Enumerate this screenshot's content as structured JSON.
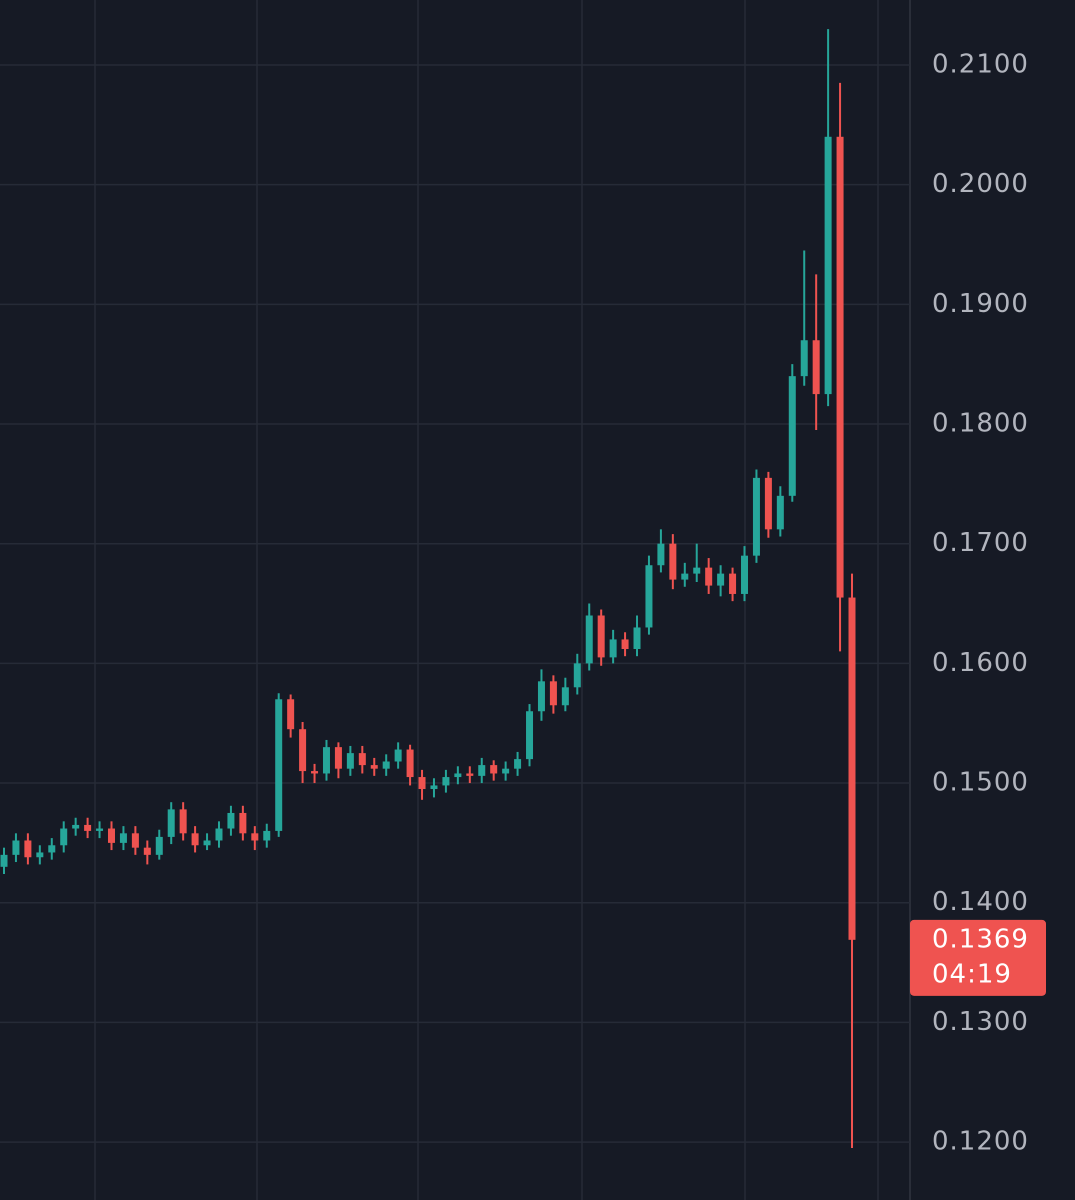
{
  "chart_data": {
    "type": "candlestick",
    "up_color": "#26a69a",
    "down_color": "#ef5350",
    "ylim": [
      0.11516,
      0.21543
    ],
    "yticks": [
      {
        "value": 0.21,
        "label": "0.2100"
      },
      {
        "value": 0.2,
        "label": "0.2000"
      },
      {
        "value": 0.19,
        "label": "0.1900"
      },
      {
        "value": 0.18,
        "label": "0.1800"
      },
      {
        "value": 0.17,
        "label": "0.1700"
      },
      {
        "value": 0.16,
        "label": "0.1600"
      },
      {
        "value": 0.15,
        "label": "0.1500"
      },
      {
        "value": 0.14,
        "label": "0.1400"
      },
      {
        "value": 0.13,
        "label": "0.1300"
      },
      {
        "value": 0.12,
        "label": "0.1200"
      }
    ],
    "grid": true,
    "last_price": 0.1369,
    "countdown": "04:19",
    "open": [
      0.143,
      0.144,
      0.1452,
      0.1438,
      0.1442,
      0.1448,
      0.1462,
      0.1465,
      0.146,
      0.1462,
      0.145,
      0.1458,
      0.1446,
      0.144,
      0.1455,
      0.1478,
      0.1458,
      0.1448,
      0.1452,
      0.1462,
      0.1475,
      0.1458,
      0.1452,
      0.146,
      0.157,
      0.1545,
      0.151,
      0.1508,
      0.153,
      0.1512,
      0.1525,
      0.1515,
      0.1512,
      0.1518,
      0.1528,
      0.1505,
      0.1495,
      0.1498,
      0.1505,
      0.1508,
      0.1506,
      0.1515,
      0.1508,
      0.1512,
      0.152,
      0.156,
      0.1585,
      0.1565,
      0.158,
      0.16,
      0.164,
      0.1605,
      0.162,
      0.1612,
      0.163,
      0.1682,
      0.17,
      0.167,
      0.1675,
      0.168,
      0.1665,
      0.1675,
      0.1658,
      0.169,
      0.1755,
      0.1712,
      0.174,
      0.184,
      0.187,
      0.1825,
      0.204,
      0.1655
    ],
    "high": [
      0.1446,
      0.1458,
      0.1458,
      0.1448,
      0.1454,
      0.1468,
      0.1471,
      0.1471,
      0.1468,
      0.1468,
      0.1464,
      0.1464,
      0.1452,
      0.1461,
      0.1484,
      0.1484,
      0.1464,
      0.1458,
      0.1468,
      0.1481,
      0.1481,
      0.1464,
      0.1466,
      0.1575,
      0.1574,
      0.1551,
      0.1516,
      0.1536,
      0.1534,
      0.1531,
      0.1531,
      0.1521,
      0.1524,
      0.1534,
      0.1532,
      0.1511,
      0.1504,
      0.1511,
      0.1514,
      0.1514,
      0.1521,
      0.1519,
      0.1518,
      0.1526,
      0.1566,
      0.1595,
      0.159,
      0.1588,
      0.1608,
      0.165,
      0.1645,
      0.1628,
      0.1626,
      0.164,
      0.169,
      0.1712,
      0.1708,
      0.1684,
      0.17,
      0.1688,
      0.1682,
      0.168,
      0.1698,
      0.1762,
      0.176,
      0.1748,
      0.185,
      0.1945,
      0.1925,
      0.213,
      0.2085,
      0.1675
    ],
    "low": [
      0.1424,
      0.1434,
      0.1432,
      0.1432,
      0.1436,
      0.1442,
      0.1456,
      0.1454,
      0.1454,
      0.1444,
      0.1444,
      0.144,
      0.1432,
      0.1436,
      0.1449,
      0.1452,
      0.1442,
      0.1444,
      0.1446,
      0.1456,
      0.1452,
      0.1444,
      0.1446,
      0.1455,
      0.1538,
      0.15,
      0.15,
      0.1502,
      0.1504,
      0.1506,
      0.1508,
      0.1506,
      0.1506,
      0.1512,
      0.1498,
      0.1486,
      0.1488,
      0.1492,
      0.1499,
      0.15,
      0.15,
      0.1502,
      0.1502,
      0.1506,
      0.1514,
      0.1552,
      0.1558,
      0.156,
      0.1574,
      0.1594,
      0.1598,
      0.16,
      0.1606,
      0.1606,
      0.1624,
      0.1676,
      0.1662,
      0.1664,
      0.1668,
      0.1658,
      0.1656,
      0.1652,
      0.1652,
      0.1684,
      0.1705,
      0.1706,
      0.1735,
      0.1832,
      0.1795,
      0.1815,
      0.161,
      0.1195
    ],
    "close": [
      0.144,
      0.1452,
      0.1438,
      0.1442,
      0.1448,
      0.1462,
      0.1465,
      0.146,
      0.1462,
      0.145,
      0.1458,
      0.1446,
      0.144,
      0.1455,
      0.1478,
      0.1458,
      0.1448,
      0.1452,
      0.1462,
      0.1475,
      0.1458,
      0.1452,
      0.146,
      0.157,
      0.1545,
      0.151,
      0.1508,
      0.153,
      0.1512,
      0.1525,
      0.1515,
      0.1512,
      0.1518,
      0.1528,
      0.1505,
      0.1495,
      0.1498,
      0.1505,
      0.1508,
      0.1506,
      0.1515,
      0.1508,
      0.1512,
      0.152,
      0.156,
      0.1585,
      0.1565,
      0.158,
      0.16,
      0.164,
      0.1605,
      0.162,
      0.1612,
      0.163,
      0.1682,
      0.17,
      0.167,
      0.1675,
      0.168,
      0.1665,
      0.1675,
      0.1658,
      0.169,
      0.1755,
      0.1712,
      0.174,
      0.184,
      0.187,
      0.1825,
      0.204,
      0.1655,
      0.1369
    ]
  }
}
